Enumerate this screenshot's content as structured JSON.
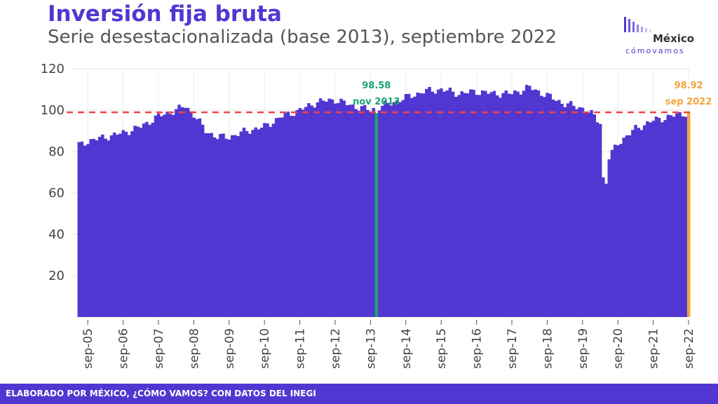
{
  "header": {
    "title": "Inversión fija bruta",
    "subtitle": "Serie desestacionalizada (base 2013), septiembre 2022"
  },
  "logo": {
    "name": "México",
    "tagline": "cómovamos"
  },
  "footer": {
    "text": "ELABORADO POR MÉXICO, ¿CÓMO VAMOS? CON DATOS DEL INEGI"
  },
  "colors": {
    "bar": "#5236d1",
    "highlight_start": "#1aa36f",
    "highlight_end": "#f5a33a",
    "reference_line": "#ee4444",
    "brand": "#5236d1"
  },
  "chart_data": {
    "type": "bar",
    "title": "Inversión fija bruta",
    "subtitle": "Serie desestacionalizada (base 2013), septiembre 2022",
    "x_start": "2005-06",
    "x_end": "2022-09",
    "frequency": "monthly",
    "x_tick_labels": [
      "sep-05",
      "sep-06",
      "sep-07",
      "sep-08",
      "sep-09",
      "sep-10",
      "sep-11",
      "sep-12",
      "sep-13",
      "sep-14",
      "sep-15",
      "sep-16",
      "sep-17",
      "sep-18",
      "sep-19",
      "sep-20",
      "sep-21",
      "sep-22"
    ],
    "y_tick_labels": [
      20,
      40,
      60,
      80,
      100,
      120
    ],
    "ylim": [
      0,
      120
    ],
    "reference_line": 98.92,
    "anchors": [
      [
        "2005-06",
        83
      ],
      [
        "2005-09",
        85
      ],
      [
        "2006-03",
        87
      ],
      [
        "2006-09",
        89
      ],
      [
        "2007-03",
        92
      ],
      [
        "2007-09",
        97
      ],
      [
        "2008-03",
        100
      ],
      [
        "2008-06",
        102
      ],
      [
        "2008-09",
        98
      ],
      [
        "2009-01",
        90
      ],
      [
        "2009-05",
        87
      ],
      [
        "2009-09",
        87
      ],
      [
        "2010-03",
        90
      ],
      [
        "2010-09",
        92
      ],
      [
        "2011-03",
        97
      ],
      [
        "2011-09",
        100
      ],
      [
        "2012-03",
        104
      ],
      [
        "2012-09",
        105
      ],
      [
        "2013-03",
        102
      ],
      [
        "2013-09",
        100
      ],
      [
        "2014-03",
        103
      ],
      [
        "2014-09",
        106
      ],
      [
        "2015-03",
        109
      ],
      [
        "2015-09",
        110
      ],
      [
        "2016-03",
        108
      ],
      [
        "2016-09",
        109
      ],
      [
        "2017-03",
        108
      ],
      [
        "2017-09",
        108
      ],
      [
        "2018-03",
        111
      ],
      [
        "2018-09",
        107
      ],
      [
        "2019-03",
        103
      ],
      [
        "2019-06",
        102
      ],
      [
        "2019-09",
        101
      ],
      [
        "2020-01",
        97
      ],
      [
        "2020-03",
        94
      ],
      [
        "2020-04",
        67
      ],
      [
        "2020-05",
        65
      ],
      [
        "2020-06",
        77
      ],
      [
        "2020-09",
        84
      ],
      [
        "2021-03",
        91
      ],
      [
        "2021-09",
        95
      ],
      [
        "2022-03",
        97
      ],
      [
        "2022-09",
        98.92
      ]
    ],
    "highlights": [
      {
        "period": "2013-11",
        "value": 98.58,
        "label": "nov 2013",
        "value_label": "98.58",
        "color": "#1aa36f"
      },
      {
        "period": "2022-09",
        "value": 98.92,
        "label": "sep 2022",
        "value_label": "98.92",
        "color": "#f5a33a"
      }
    ]
  }
}
